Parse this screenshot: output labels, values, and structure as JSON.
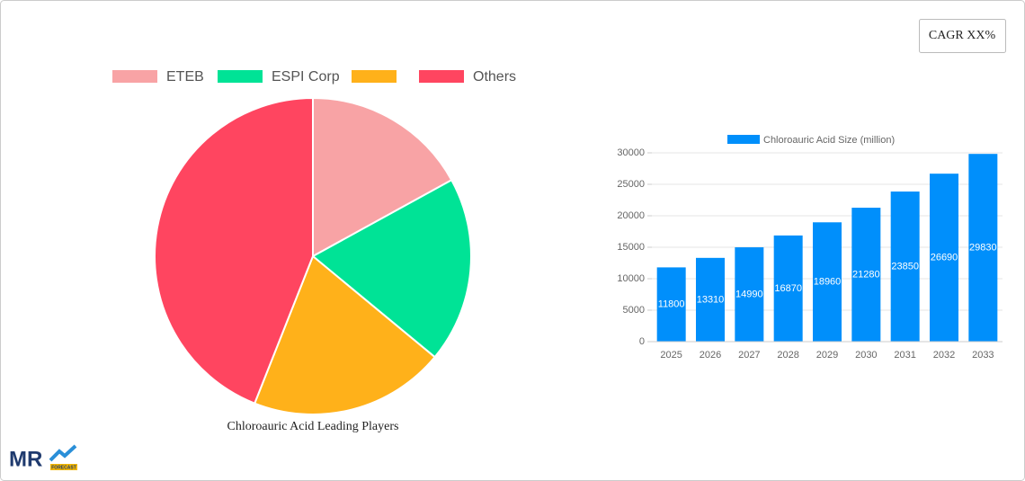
{
  "cagr_label": "CAGR XX%",
  "logo": {
    "text": "MR",
    "subtext": "FORECAST"
  },
  "chart_data": [
    {
      "type": "pie",
      "title": "Chloroauric Acid Leading Players",
      "categories": [
        "ETEB",
        "ESPI Corp",
        null,
        "Others"
      ],
      "values": [
        17,
        19,
        20,
        44
      ],
      "colors": [
        "#f8a3a5",
        "#00e396",
        "#ffb11a",
        "#ff4560"
      ]
    },
    {
      "type": "bar",
      "categories": [
        "2025",
        "2026",
        "2027",
        "2028",
        "2029",
        "2030",
        "2031",
        "2032",
        "2033"
      ],
      "series": [
        {
          "name": "Chloroauric Acid Size (million)",
          "color": "#008ffb",
          "values": [
            11800,
            13310,
            14990,
            16870,
            18960,
            21280,
            23850,
            26690,
            29830
          ]
        }
      ],
      "ylim": [
        0,
        30000
      ],
      "yticks": [
        0,
        5000,
        10000,
        15000,
        20000,
        25000,
        30000
      ],
      "grid": true
    }
  ]
}
